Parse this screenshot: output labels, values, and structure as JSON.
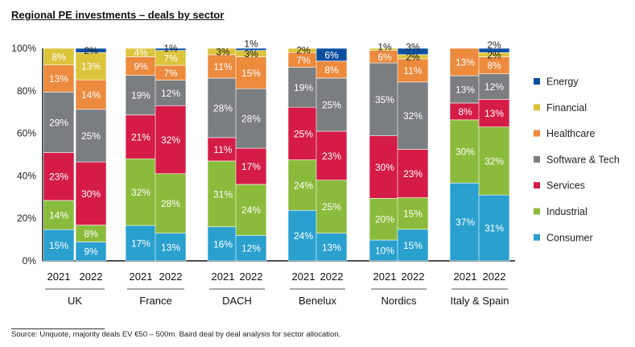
{
  "chart_data": {
    "type": "bar",
    "stacked": true,
    "title": "Regional PE investments – deals by sector",
    "ylim": [
      0,
      100
    ],
    "yticks": [
      "0%",
      "20%",
      "40%",
      "60%",
      "80%",
      "100%"
    ],
    "legend_position": "right",
    "groups": [
      "UK",
      "France",
      "DACH",
      "Benelux",
      "Nordics",
      "Italy & Spain"
    ],
    "years": [
      "2021",
      "2022"
    ],
    "series": [
      {
        "name": "Consumer",
        "color": "#2aa0cf",
        "values": [
          [
            15,
            9
          ],
          [
            17,
            13
          ],
          [
            16,
            12
          ],
          [
            24,
            13
          ],
          [
            10,
            15
          ],
          [
            37,
            31
          ]
        ]
      },
      {
        "name": "Industrial",
        "color": "#8bbb3c",
        "values": [
          [
            14,
            8
          ],
          [
            32,
            28
          ],
          [
            31,
            24
          ],
          [
            24,
            25
          ],
          [
            20,
            15
          ],
          [
            30,
            32
          ]
        ]
      },
      {
        "name": "Services",
        "color": "#d41c47",
        "values": [
          [
            23,
            30
          ],
          [
            21,
            32
          ],
          [
            11,
            17
          ],
          [
            25,
            23
          ],
          [
            30,
            23
          ],
          [
            8,
            13
          ]
        ]
      },
      {
        "name": "Software & Tech",
        "color": "#7b7e80",
        "values": [
          [
            29,
            25
          ],
          [
            19,
            12
          ],
          [
            28,
            28
          ],
          [
            19,
            25
          ],
          [
            35,
            32
          ],
          [
            13,
            12
          ]
        ]
      },
      {
        "name": "Healthcare",
        "color": "#ec8a3e",
        "values": [
          [
            13,
            14
          ],
          [
            9,
            7
          ],
          [
            11,
            15
          ],
          [
            7,
            8
          ],
          [
            6,
            11
          ],
          [
            13,
            8
          ]
        ]
      },
      {
        "name": "Financial",
        "color": "#dcc43c",
        "values": [
          [
            8,
            13
          ],
          [
            4,
            7
          ],
          [
            3,
            3
          ],
          [
            2,
            0
          ],
          [
            1,
            2
          ],
          [
            0,
            2
          ]
        ]
      },
      {
        "name": "Energy",
        "color": "#0b4fa0",
        "values": [
          [
            0,
            2
          ],
          [
            0,
            1
          ],
          [
            0,
            1
          ],
          [
            0,
            6
          ],
          [
            0,
            3
          ],
          [
            0,
            2
          ]
        ]
      }
    ]
  },
  "source": "Source:  Unquote, majority deals EV €50 – 500m.  Baird deal by deal analysis for sector allocation."
}
